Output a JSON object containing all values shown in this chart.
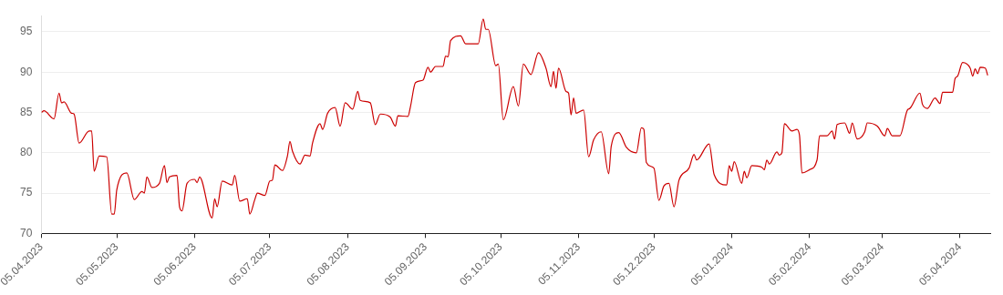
{
  "chart_data": {
    "type": "line",
    "line_style": "solid",
    "marker": "none",
    "grid": "y",
    "legend": false,
    "xlim": [
      "2023-04-05",
      "2024-04-17"
    ],
    "xticks": [
      {
        "value": "2023-04-05",
        "label": "05.04.2023"
      },
      {
        "value": "2023-05-05",
        "label": "05.05.2023"
      },
      {
        "value": "2023-06-05",
        "label": "05.06.2023"
      },
      {
        "value": "2023-07-05",
        "label": "05.07.2023"
      },
      {
        "value": "2023-08-05",
        "label": "05.08.2023"
      },
      {
        "value": "2023-09-05",
        "label": "05.09.2023"
      },
      {
        "value": "2023-10-05",
        "label": "05.10.2023"
      },
      {
        "value": "2023-11-05",
        "label": "05.11.2023"
      },
      {
        "value": "2023-12-05",
        "label": "05.12.2023"
      },
      {
        "value": "2024-01-05",
        "label": "05.01.2024"
      },
      {
        "value": "2024-02-05",
        "label": "05.02.2024"
      },
      {
        "value": "2024-03-05",
        "label": "05.03.2024"
      },
      {
        "value": "2024-04-05",
        "label": "05.04.2024"
      }
    ],
    "ylim": [
      70,
      97
    ],
    "yticks": [
      70,
      75,
      80,
      85,
      90,
      95
    ],
    "x": [
      "2023-04-05",
      "2023-04-06",
      "2023-04-10",
      "2023-04-12",
      "2023-04-13",
      "2023-04-14",
      "2023-04-17",
      "2023-04-18",
      "2023-04-20",
      "2023-04-24",
      "2023-04-25",
      "2023-04-26",
      "2023-04-28",
      "2023-05-01",
      "2023-05-03",
      "2023-05-04",
      "2023-05-05",
      "2023-05-09",
      "2023-05-12",
      "2023-05-15",
      "2023-05-16",
      "2023-05-17",
      "2023-05-19",
      "2023-05-22",
      "2023-05-24",
      "2023-05-25",
      "2023-05-26",
      "2023-05-29",
      "2023-05-30",
      "2023-05-31",
      "2023-06-02",
      "2023-06-05",
      "2023-06-06",
      "2023-06-07",
      "2023-06-12",
      "2023-06-13",
      "2023-06-14",
      "2023-06-16",
      "2023-06-20",
      "2023-06-21",
      "2023-06-23",
      "2023-06-26",
      "2023-06-27",
      "2023-06-29",
      "2023-06-30",
      "2023-07-03",
      "2023-07-05",
      "2023-07-06",
      "2023-07-07",
      "2023-07-10",
      "2023-07-12",
      "2023-07-13",
      "2023-07-14",
      "2023-07-17",
      "2023-07-19",
      "2023-07-21",
      "2023-07-22",
      "2023-07-25",
      "2023-07-26",
      "2023-07-28",
      "2023-07-31",
      "2023-08-02",
      "2023-08-04",
      "2023-08-07",
      "2023-08-09",
      "2023-08-10",
      "2023-08-14",
      "2023-08-16",
      "2023-08-18",
      "2023-08-22",
      "2023-08-24",
      "2023-08-25",
      "2023-08-29",
      "2023-08-30",
      "2023-09-01",
      "2023-09-04",
      "2023-09-06",
      "2023-09-07",
      "2023-09-09",
      "2023-09-12",
      "2023-09-13",
      "2023-09-14",
      "2023-09-15",
      "2023-09-19",
      "2023-09-21",
      "2023-09-26",
      "2023-09-28",
      "2023-09-29",
      "2023-09-30",
      "2023-10-03",
      "2023-10-04",
      "2023-10-06",
      "2023-10-10",
      "2023-10-12",
      "2023-10-14",
      "2023-10-17",
      "2023-10-20",
      "2023-10-23",
      "2023-10-25",
      "2023-10-26",
      "2023-10-27",
      "2023-10-28",
      "2023-10-31",
      "2023-11-01",
      "2023-11-02",
      "2023-11-03",
      "2023-11-04",
      "2023-11-07",
      "2023-11-09",
      "2023-11-11",
      "2023-11-14",
      "2023-11-17",
      "2023-11-18",
      "2023-11-21",
      "2023-11-24",
      "2023-11-28",
      "2023-11-30",
      "2023-12-01",
      "2023-12-02",
      "2023-12-05",
      "2023-12-07",
      "2023-12-09",
      "2023-12-11",
      "2023-12-13",
      "2023-12-15",
      "2023-12-19",
      "2023-12-21",
      "2023-12-22",
      "2023-12-27",
      "2023-12-29",
      "2024-01-03",
      "2024-01-04",
      "2024-01-05",
      "2024-01-06",
      "2024-01-09",
      "2024-01-10",
      "2024-01-11",
      "2024-01-13",
      "2024-01-17",
      "2024-01-18",
      "2024-01-19",
      "2024-01-20",
      "2024-01-23",
      "2024-01-24",
      "2024-01-25",
      "2024-01-26",
      "2024-01-29",
      "2024-01-31",
      "2024-02-01",
      "2024-02-02",
      "2024-02-05",
      "2024-02-08",
      "2024-02-09",
      "2024-02-12",
      "2024-02-14",
      "2024-02-15",
      "2024-02-16",
      "2024-02-19",
      "2024-02-21",
      "2024-02-22",
      "2024-02-24",
      "2024-02-27",
      "2024-02-28",
      "2024-03-03",
      "2024-03-06",
      "2024-03-07",
      "2024-03-09",
      "2024-03-12",
      "2024-03-15",
      "2024-03-16",
      "2024-03-20",
      "2024-03-21",
      "2024-03-23",
      "2024-03-26",
      "2024-03-28",
      "2024-03-29",
      "2024-04-02",
      "2024-04-03",
      "2024-04-04",
      "2024-04-06",
      "2024-04-09",
      "2024-04-10",
      "2024-04-11",
      "2024-04-12",
      "2024-04-13",
      "2024-04-15",
      "2024-04-16"
    ],
    "series": [
      {
        "color": "#cc0000",
        "values": [
          85.0,
          85.2,
          84.2,
          87.4,
          86.2,
          86.3,
          84.9,
          84.8,
          81.2,
          82.7,
          82.7,
          77.7,
          79.6,
          79.5,
          72.4,
          72.4,
          75.4,
          77.5,
          74.2,
          75.2,
          75.0,
          77.0,
          75.7,
          76.2,
          78.4,
          76.3,
          77.0,
          77.2,
          73.3,
          72.8,
          76.2,
          76.7,
          76.3,
          77.0,
          71.9,
          74.3,
          73.3,
          76.5,
          76.0,
          77.2,
          74.0,
          74.3,
          72.4,
          74.2,
          75.0,
          74.7,
          76.5,
          76.6,
          78.5,
          77.8,
          79.6,
          81.4,
          80.2,
          78.6,
          79.7,
          79.6,
          81.2,
          83.6,
          82.9,
          84.9,
          85.6,
          83.3,
          86.2,
          85.4,
          87.6,
          86.5,
          86.2,
          83.5,
          84.8,
          84.4,
          83.3,
          84.6,
          84.5,
          85.7,
          88.7,
          89.0,
          90.6,
          90.0,
          90.7,
          90.7,
          92.0,
          91.9,
          93.9,
          94.5,
          93.5,
          93.5,
          96.6,
          95.3,
          95.3,
          90.8,
          91.0,
          84.1,
          88.2,
          85.8,
          91.0,
          89.7,
          92.4,
          90.5,
          88.2,
          90.1,
          88.0,
          90.5,
          87.6,
          87.4,
          84.7,
          86.8,
          84.9,
          85.3,
          79.5,
          81.6,
          82.6,
          77.4,
          80.8,
          82.5,
          80.7,
          80.0,
          83.1,
          82.9,
          78.8,
          78.1,
          74.1,
          75.9,
          76.2,
          73.3,
          76.6,
          78.1,
          79.8,
          79.1,
          81.1,
          77.3,
          76.0,
          78.4,
          77.7,
          78.9,
          76.2,
          77.7,
          76.9,
          78.4,
          78.2,
          77.9,
          79.1,
          78.6,
          80.1,
          79.7,
          80.0,
          83.6,
          82.7,
          82.9,
          82.2,
          77.5,
          77.9,
          79.1,
          82.1,
          82.1,
          82.7,
          81.7,
          83.5,
          83.7,
          82.4,
          83.7,
          81.7,
          82.6,
          83.7,
          83.3,
          82.1,
          83.0,
          82.1,
          82.1,
          85.3,
          85.5,
          87.4,
          86.0,
          85.5,
          86.8,
          86.1,
          87.5,
          87.5,
          89.2,
          89.5,
          91.2,
          90.5,
          89.5,
          90.4,
          89.8,
          90.6,
          90.5,
          89.6
        ]
      }
    ]
  }
}
